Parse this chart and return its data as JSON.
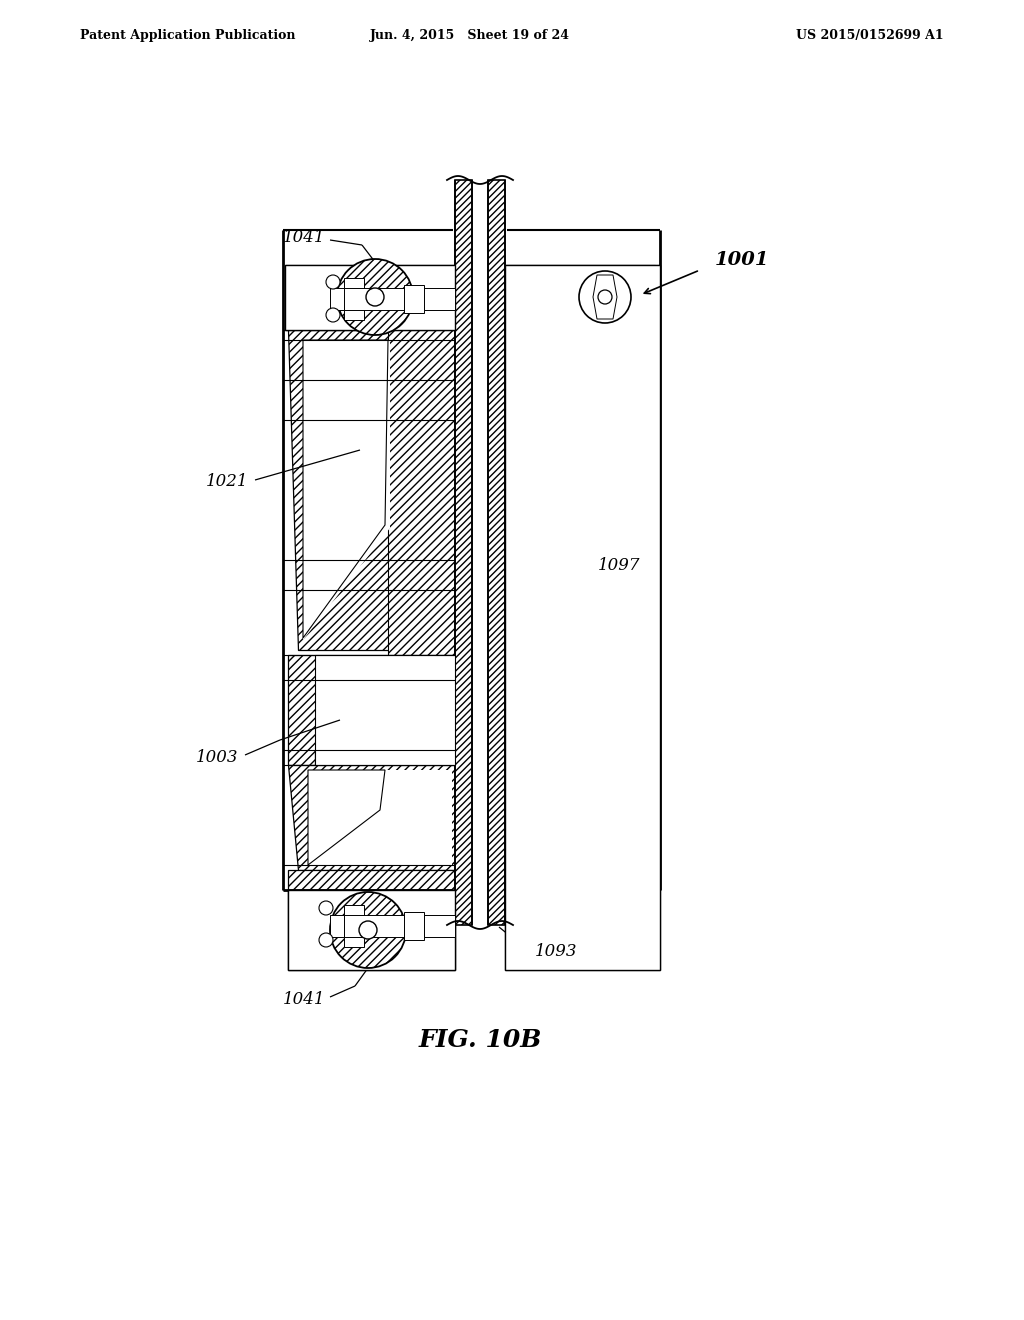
{
  "header_left": "Patent Application Publication",
  "header_mid": "Jun. 4, 2015   Sheet 19 of 24",
  "header_right": "US 2015/0152699 A1",
  "fig_label": "FIG. 10B",
  "bg": "#ffffff",
  "page_width": 10.24,
  "page_height": 13.2,
  "dpi": 100,
  "label_1001": "1001",
  "label_1041": "1041",
  "label_1021": "1021",
  "label_1097": "1097",
  "label_1003": "1003",
  "label_1093": "1093"
}
